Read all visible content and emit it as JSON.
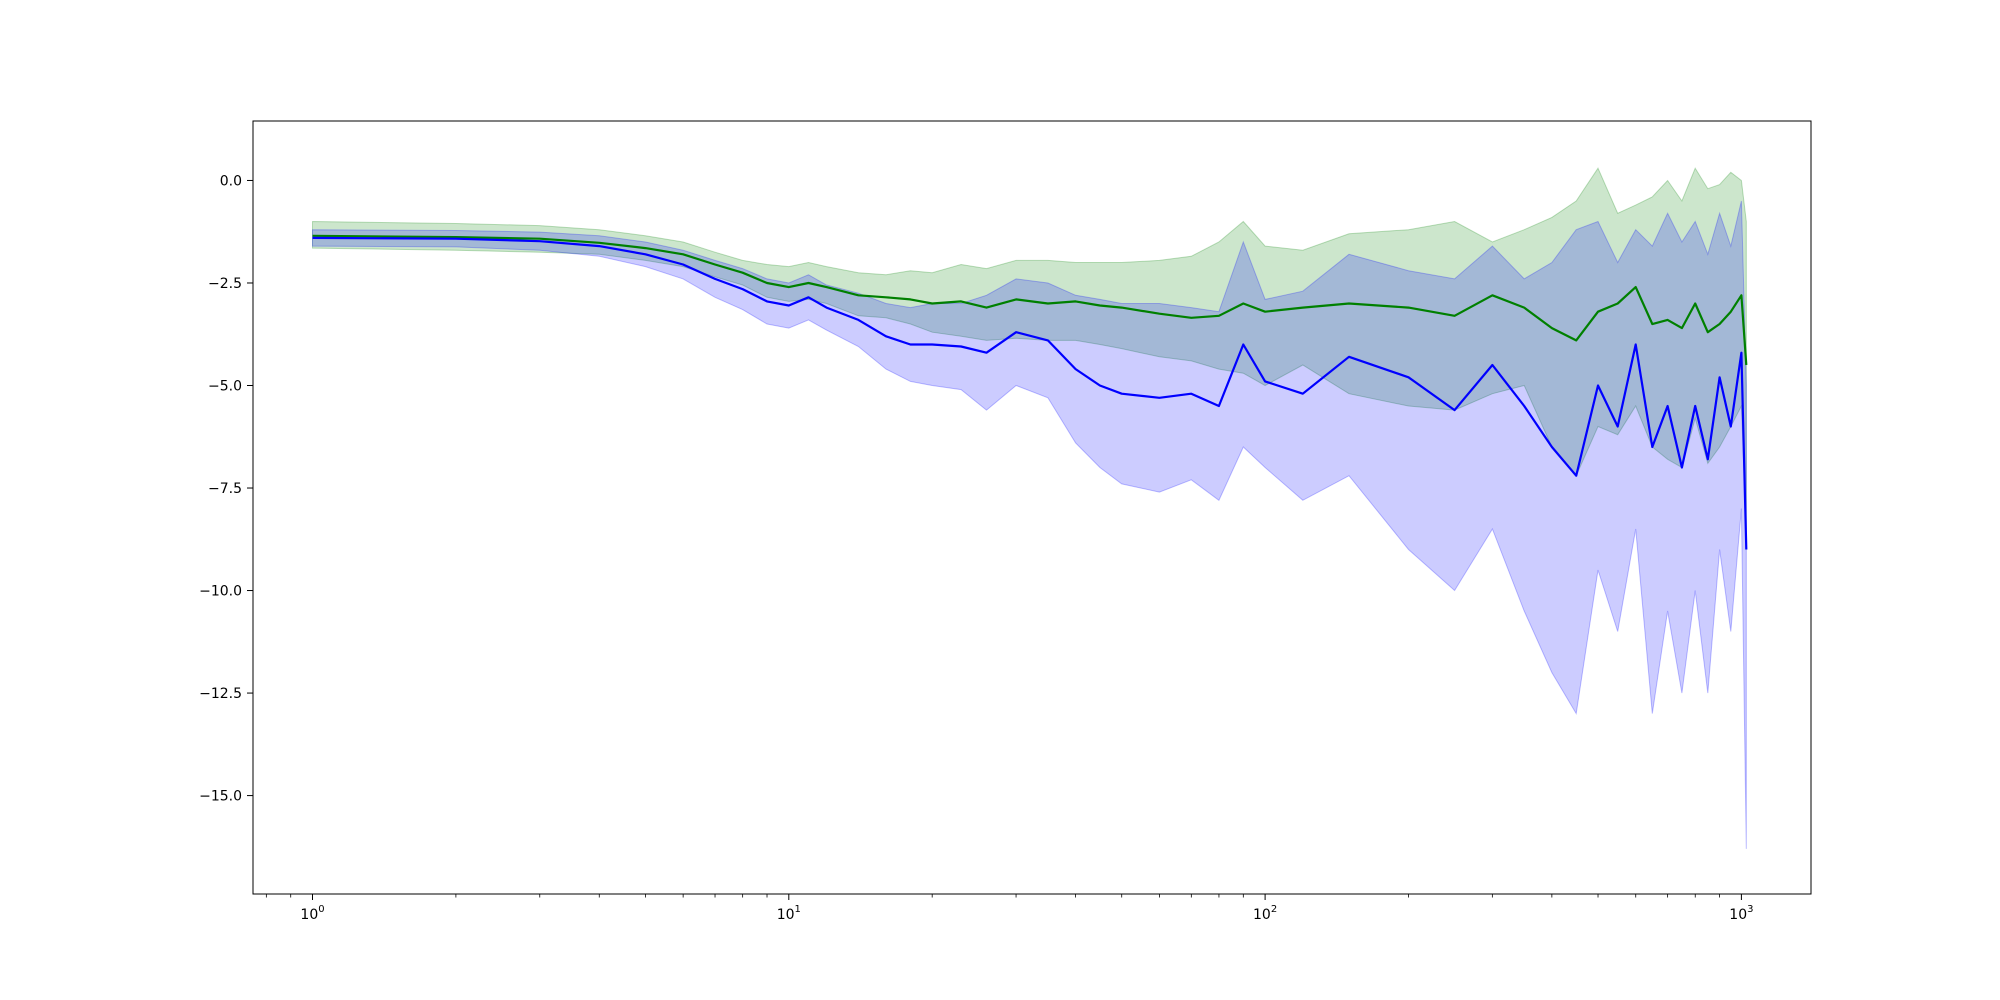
{
  "chart_data": {
    "type": "area",
    "title": "",
    "xlabel": "",
    "ylabel": "",
    "xscale": "log",
    "xlim": [
      0.75,
      1400
    ],
    "ylim": [
      -17.4,
      1.45
    ],
    "grid": false,
    "legend": "none",
    "x_ticks": [
      {
        "value": 1,
        "base": "10",
        "exp": "0"
      },
      {
        "value": 10,
        "base": "10",
        "exp": "1"
      },
      {
        "value": 100,
        "base": "10",
        "exp": "2"
      },
      {
        "value": 1000,
        "base": "10",
        "exp": "3"
      }
    ],
    "y_ticks": [
      {
        "value": 0.0,
        "label": "0.0"
      },
      {
        "value": -2.5,
        "label": "−2.5"
      },
      {
        "value": -5.0,
        "label": "−5.0"
      },
      {
        "value": -7.5,
        "label": "−7.5"
      },
      {
        "value": -10.0,
        "label": "−10.0"
      },
      {
        "value": -12.5,
        "label": "−12.5"
      },
      {
        "value": -15.0,
        "label": "−15.0"
      }
    ],
    "series": [
      {
        "color": "#008000",
        "band_color": "#008000",
        "band_opacity": 0.2,
        "x": [
          1,
          2,
          3,
          4,
          5,
          6,
          7,
          8,
          9,
          10,
          11,
          12,
          14,
          16,
          18,
          20,
          23,
          26,
          30,
          35,
          40,
          45,
          50,
          60,
          70,
          80,
          90,
          100,
          120,
          150,
          200,
          250,
          300,
          350,
          400,
          450,
          500,
          550,
          600,
          650,
          700,
          750,
          800,
          850,
          900,
          950,
          1000,
          1024
        ],
        "mean": [
          -1.35,
          -1.38,
          -1.42,
          -1.52,
          -1.65,
          -1.8,
          -2.05,
          -2.25,
          -2.5,
          -2.6,
          -2.5,
          -2.6,
          -2.8,
          -2.85,
          -2.9,
          -3.0,
          -2.95,
          -3.1,
          -2.9,
          -3.0,
          -2.95,
          -3.05,
          -3.1,
          -3.25,
          -3.35,
          -3.3,
          -3.0,
          -3.2,
          -3.1,
          -3.0,
          -3.1,
          -3.3,
          -2.8,
          -3.1,
          -3.6,
          -3.9,
          -3.2,
          -3.0,
          -2.6,
          -3.5,
          -3.4,
          -3.6,
          -3.0,
          -3.7,
          -3.5,
          -3.2,
          -2.8,
          -4.5
        ],
        "upper": [
          -1.0,
          -1.05,
          -1.1,
          -1.2,
          -1.35,
          -1.5,
          -1.75,
          -1.95,
          -2.05,
          -2.1,
          -2.0,
          -2.1,
          -2.25,
          -2.3,
          -2.2,
          -2.25,
          -2.05,
          -2.15,
          -1.95,
          -1.95,
          -2.0,
          -2.0,
          -2.0,
          -1.95,
          -1.85,
          -1.5,
          -1.0,
          -1.6,
          -1.7,
          -1.3,
          -1.2,
          -1.0,
          -1.5,
          -1.2,
          -0.9,
          -0.5,
          0.3,
          -0.8,
          -0.6,
          -0.4,
          0.0,
          -0.5,
          0.3,
          -0.2,
          -0.1,
          0.2,
          0.0,
          -1.0
        ],
        "lower": [
          -1.65,
          -1.7,
          -1.75,
          -1.8,
          -1.95,
          -2.1,
          -2.35,
          -2.55,
          -2.85,
          -2.95,
          -2.9,
          -3.0,
          -3.3,
          -3.35,
          -3.5,
          -3.7,
          -3.8,
          -3.9,
          -3.85,
          -3.9,
          -3.9,
          -4.0,
          -4.1,
          -4.3,
          -4.4,
          -4.6,
          -4.7,
          -5.0,
          -4.5,
          -5.2,
          -5.5,
          -5.6,
          -5.2,
          -5.0,
          -6.5,
          -7.2,
          -6.0,
          -6.2,
          -5.5,
          -6.5,
          -6.8,
          -7.0,
          -5.8,
          -6.9,
          -6.5,
          -6.0,
          -5.5,
          -8.5
        ]
      },
      {
        "color": "#0000ff",
        "band_color": "#0000ff",
        "band_opacity": 0.2,
        "x": [
          1,
          2,
          3,
          4,
          5,
          6,
          7,
          8,
          9,
          10,
          11,
          12,
          14,
          16,
          18,
          20,
          23,
          26,
          30,
          35,
          40,
          45,
          50,
          60,
          70,
          80,
          90,
          100,
          120,
          150,
          200,
          250,
          300,
          350,
          400,
          450,
          500,
          550,
          600,
          650,
          700,
          750,
          800,
          850,
          900,
          950,
          1000,
          1024
        ],
        "mean": [
          -1.4,
          -1.42,
          -1.48,
          -1.6,
          -1.8,
          -2.05,
          -2.4,
          -2.65,
          -2.95,
          -3.05,
          -2.85,
          -3.1,
          -3.4,
          -3.8,
          -4.0,
          -4.0,
          -4.05,
          -4.2,
          -3.7,
          -3.9,
          -4.6,
          -5.0,
          -5.2,
          -5.3,
          -5.2,
          -5.5,
          -4.0,
          -4.9,
          -5.2,
          -4.3,
          -4.8,
          -5.6,
          -4.5,
          -5.5,
          -6.5,
          -7.2,
          -5.0,
          -6.0,
          -4.0,
          -6.5,
          -5.5,
          -7.0,
          -5.5,
          -6.8,
          -4.8,
          -6.0,
          -4.2,
          -9.0
        ],
        "upper": [
          -1.2,
          -1.22,
          -1.26,
          -1.35,
          -1.5,
          -1.7,
          -1.95,
          -2.15,
          -2.4,
          -2.5,
          -2.3,
          -2.55,
          -2.75,
          -3.0,
          -3.1,
          -3.0,
          -3.0,
          -2.8,
          -2.4,
          -2.5,
          -2.8,
          -2.9,
          -3.0,
          -3.0,
          -3.1,
          -3.2,
          -1.5,
          -2.9,
          -2.7,
          -1.8,
          -2.2,
          -2.4,
          -1.6,
          -2.4,
          -2.0,
          -1.2,
          -1.0,
          -2.0,
          -1.2,
          -1.6,
          -0.8,
          -1.5,
          -1.0,
          -1.8,
          -0.8,
          -1.6,
          -0.5,
          -5.0
        ],
        "lower": [
          -1.6,
          -1.62,
          -1.7,
          -1.85,
          -2.1,
          -2.4,
          -2.85,
          -3.15,
          -3.5,
          -3.6,
          -3.4,
          -3.65,
          -4.05,
          -4.6,
          -4.9,
          -5.0,
          -5.1,
          -5.6,
          -5.0,
          -5.3,
          -6.4,
          -7.0,
          -7.4,
          -7.6,
          -7.3,
          -7.8,
          -6.5,
          -7.0,
          -7.8,
          -7.2,
          -9.0,
          -10.0,
          -8.5,
          -10.5,
          -12.0,
          -13.0,
          -9.5,
          -11.0,
          -8.5,
          -13.0,
          -10.5,
          -12.5,
          -10.0,
          -12.5,
          -9.0,
          -11.0,
          -8.0,
          -16.3
        ]
      }
    ]
  }
}
